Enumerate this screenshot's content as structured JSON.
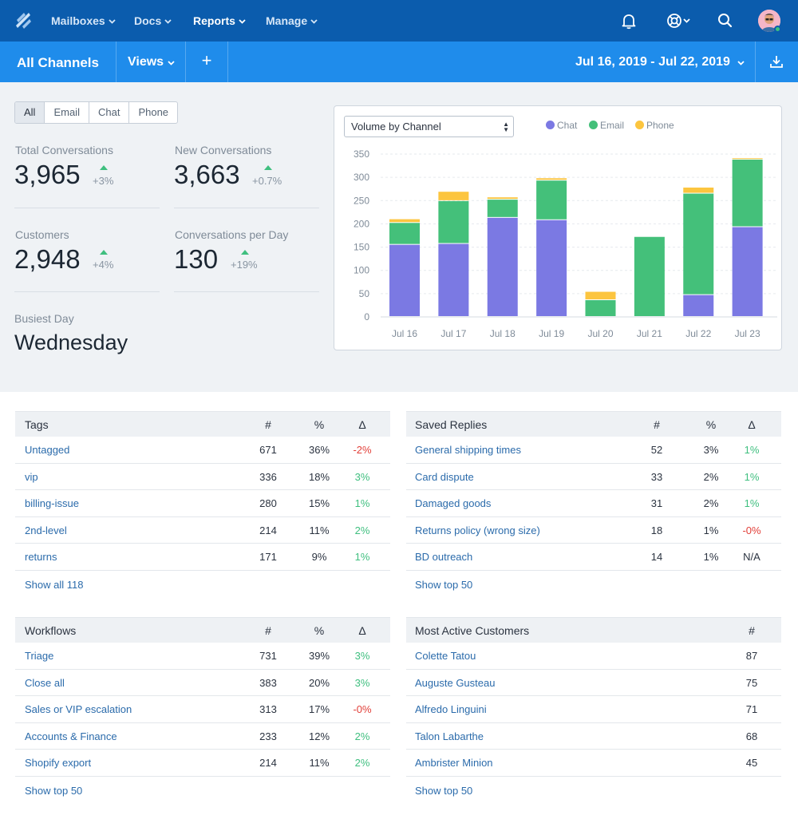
{
  "topnav": {
    "items": [
      {
        "label": "Mailboxes"
      },
      {
        "label": "Docs"
      },
      {
        "label": "Reports"
      },
      {
        "label": "Manage"
      }
    ]
  },
  "subnav": {
    "title": "All Channels",
    "views_label": "Views",
    "add_label": "+",
    "date_range": "Jul 16, 2019 - Jul 22, 2019"
  },
  "filters": [
    "All",
    "Email",
    "Chat",
    "Phone"
  ],
  "stats": {
    "total": {
      "label": "Total Conversations",
      "value": "3,965",
      "change": "+3%"
    },
    "new": {
      "label": "New Conversations",
      "value": "3,663",
      "change": "+0.7%"
    },
    "customers": {
      "label": "Customers",
      "value": "2,948",
      "change": "+4%"
    },
    "per_day": {
      "label": "Conversations per Day",
      "value": "130",
      "change": "+19%"
    },
    "busiest": {
      "label": "Busiest Day",
      "value": "Wednesday"
    }
  },
  "chart_select": "Volume by Channel",
  "colors": {
    "chat": "#7b79e3",
    "email": "#44c07a",
    "phone": "#fcc53f"
  },
  "chart_data": {
    "type": "bar",
    "stacked": true,
    "categories": [
      "Jul 16",
      "Jul 17",
      "Jul 18",
      "Jul 19",
      "Jul 20",
      "Jul 21",
      "Jul 22",
      "Jul 23"
    ],
    "series": [
      {
        "name": "Chat",
        "values": [
          155,
          157,
          213,
          208,
          0,
          0,
          47,
          193
        ]
      },
      {
        "name": "Email",
        "values": [
          47,
          92,
          39,
          85,
          36,
          172,
          218,
          145
        ]
      },
      {
        "name": "Phone",
        "values": [
          8,
          20,
          5,
          5,
          18,
          0,
          13,
          3
        ]
      }
    ],
    "ylim": [
      0,
      350
    ],
    "yticks": [
      0,
      50,
      100,
      150,
      200,
      250,
      300,
      350
    ],
    "legend": "top",
    "grid": true
  },
  "tags": {
    "headers": [
      "Tags",
      "#",
      "%",
      "Δ"
    ],
    "rows": [
      {
        "name": "Untagged",
        "count": "671",
        "pct": "36%",
        "delta": "-2%",
        "trend": "neg"
      },
      {
        "name": "vip",
        "count": "336",
        "pct": "18%",
        "delta": "3%",
        "trend": "pos"
      },
      {
        "name": "billing-issue",
        "count": "280",
        "pct": "15%",
        "delta": "1%",
        "trend": "pos"
      },
      {
        "name": "2nd-level",
        "count": "214",
        "pct": "11%",
        "delta": "2%",
        "trend": "pos"
      },
      {
        "name": "returns",
        "count": "171",
        "pct": "9%",
        "delta": "1%",
        "trend": "pos"
      }
    ],
    "footer": "Show all 118"
  },
  "saved_replies": {
    "headers": [
      "Saved Replies",
      "#",
      "%",
      "Δ"
    ],
    "rows": [
      {
        "name": "General shipping times",
        "count": "52",
        "pct": "3%",
        "delta": "1%",
        "trend": "pos"
      },
      {
        "name": "Card dispute",
        "count": "33",
        "pct": "2%",
        "delta": "1%",
        "trend": "pos"
      },
      {
        "name": "Damaged goods",
        "count": "31",
        "pct": "2%",
        "delta": "1%",
        "trend": "pos"
      },
      {
        "name": "Returns policy (wrong size)",
        "count": "18",
        "pct": "1%",
        "delta": "-0%",
        "trend": "neg"
      },
      {
        "name": "BD outreach",
        "count": "14",
        "pct": "1%",
        "delta": "N/A",
        "trend": "na"
      }
    ],
    "footer": "Show top 50"
  },
  "workflows": {
    "headers": [
      "Workflows",
      "#",
      "%",
      "Δ"
    ],
    "rows": [
      {
        "name": "Triage",
        "count": "731",
        "pct": "39%",
        "delta": "3%",
        "trend": "pos"
      },
      {
        "name": "Close all",
        "count": "383",
        "pct": "20%",
        "delta": "3%",
        "trend": "pos"
      },
      {
        "name": "Sales or VIP escalation",
        "count": "313",
        "pct": "17%",
        "delta": "-0%",
        "trend": "neg"
      },
      {
        "name": "Accounts & Finance",
        "count": "233",
        "pct": "12%",
        "delta": "2%",
        "trend": "pos"
      },
      {
        "name": "Shopify export",
        "count": "214",
        "pct": "11%",
        "delta": "2%",
        "trend": "pos"
      }
    ],
    "footer": "Show top 50"
  },
  "customers": {
    "headers": [
      "Most Active Customers",
      "#"
    ],
    "rows": [
      {
        "name": "Colette Tatou",
        "count": "87"
      },
      {
        "name": "Auguste Gusteau",
        "count": "75"
      },
      {
        "name": "Alfredo Linguini",
        "count": "71"
      },
      {
        "name": "Talon Labarthe",
        "count": "68"
      },
      {
        "name": "Ambrister Minion",
        "count": "45"
      }
    ],
    "footer": "Show top 50"
  }
}
